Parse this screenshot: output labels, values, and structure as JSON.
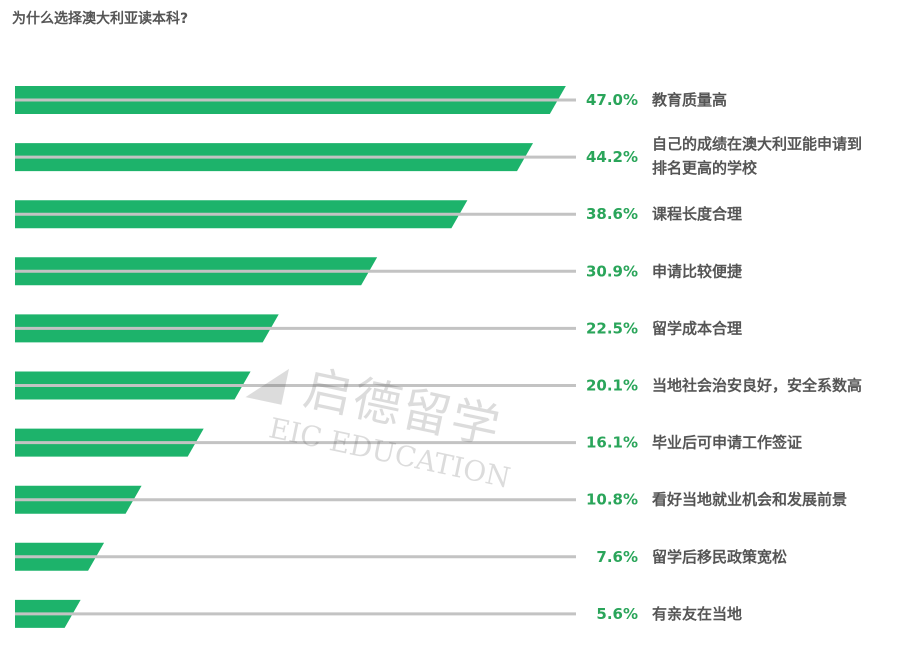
{
  "colors": {
    "bar": "#1db36b",
    "line": "#c3c3c3",
    "pct": "#2aa55a",
    "label": "#555555"
  },
  "watermark": {
    "cn": "启德留学",
    "en": "EIC EDUCATION"
  },
  "chart_data": {
    "type": "bar",
    "orientation": "horizontal",
    "title": "为什么选择澳大利亚读本科?",
    "categories": [
      [
        "教育质量高"
      ],
      [
        "自己的成绩在澳大利亚能申请到",
        "排名更高的学校"
      ],
      [
        "课程长度合理"
      ],
      [
        "申请比较便捷"
      ],
      [
        "留学成本合理"
      ],
      [
        "当地社会治安良好，安全系数高"
      ],
      [
        "毕业后可申请工作签证"
      ],
      [
        "看好当地就业机会和发展前景"
      ],
      [
        "留学后移民政策宽松"
      ],
      [
        "有亲友在当地"
      ]
    ],
    "values": [
      47.0,
      44.2,
      38.6,
      30.9,
      22.5,
      20.1,
      16.1,
      10.8,
      7.6,
      5.6
    ],
    "value_labels": [
      "47.0%",
      "44.2%",
      "38.6%",
      "30.9%",
      "22.5%",
      "20.1%",
      "16.1%",
      "10.8%",
      "7.6%",
      "5.6%"
    ],
    "grid": false,
    "legend": "none"
  }
}
